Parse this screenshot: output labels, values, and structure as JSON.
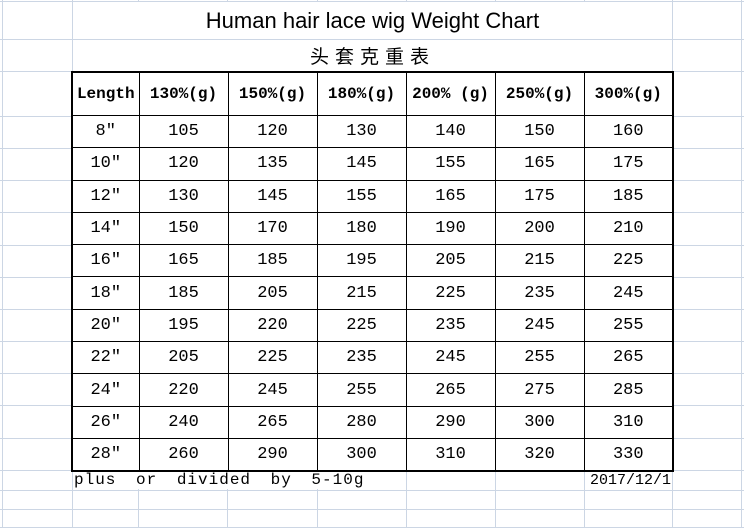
{
  "chart_data": {
    "type": "table",
    "title": "Human hair lace wig Weight Chart",
    "subtitle": "头套克重表",
    "columns": [
      "Length",
      "130%(g)",
      "150%(g)",
      "180%(g)",
      "200% (g)",
      "250%(g)",
      "300%(g)"
    ],
    "rows": [
      {
        "length": "8″",
        "values": [
          105,
          120,
          130,
          140,
          150,
          160
        ]
      },
      {
        "length": "10″",
        "values": [
          120,
          135,
          145,
          155,
          165,
          175
        ]
      },
      {
        "length": "12″",
        "values": [
          130,
          145,
          155,
          165,
          175,
          185
        ]
      },
      {
        "length": "14″",
        "values": [
          150,
          170,
          180,
          190,
          200,
          210
        ]
      },
      {
        "length": "16″",
        "values": [
          165,
          185,
          195,
          205,
          215,
          225
        ]
      },
      {
        "length": "18″",
        "values": [
          185,
          205,
          215,
          225,
          235,
          245
        ]
      },
      {
        "length": "20″",
        "values": [
          195,
          220,
          225,
          235,
          245,
          255
        ]
      },
      {
        "length": "22″",
        "values": [
          205,
          225,
          235,
          245,
          255,
          265
        ]
      },
      {
        "length": "24″",
        "values": [
          220,
          245,
          255,
          265,
          275,
          285
        ]
      },
      {
        "length": "26″",
        "values": [
          240,
          265,
          280,
          290,
          300,
          310
        ]
      },
      {
        "length": "28″",
        "values": [
          260,
          290,
          300,
          310,
          320,
          330
        ]
      }
    ],
    "footnote": "plus or divided by 5-10g",
    "date": "2017/12/1"
  },
  "colors": {
    "background": "#ffffff",
    "gridline": "#ccd6e4",
    "table_border": "#000000",
    "text": "#000000"
  }
}
